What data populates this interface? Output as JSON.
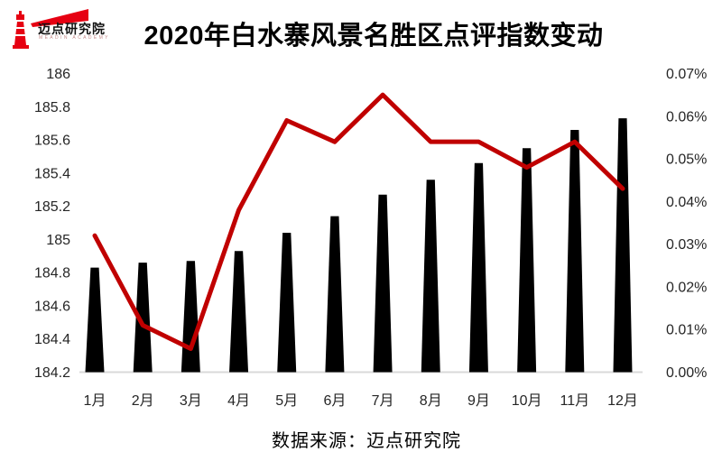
{
  "logo": {
    "name": "迈点研究院",
    "subtext": "MEADIN ACADEMY",
    "color": "#e60012"
  },
  "title": "2020年白水寨风景名胜区点评指数变动",
  "footer": "数据来源：迈点研究院",
  "colors": {
    "bar": "#000000",
    "line": "#c00000",
    "axis_text": "#262626",
    "baseline": "#d9d9d9",
    "background": "#ffffff"
  },
  "chart_data": {
    "type": "bar+line",
    "title": "2020年白水寨风景名胜区点评指数变动",
    "categories": [
      "1月",
      "2月",
      "3月",
      "4月",
      "5月",
      "6月",
      "7月",
      "8月",
      "9月",
      "10月",
      "11月",
      "12月"
    ],
    "series": [
      {
        "name": "left-axis-bars",
        "type": "bar",
        "axis": "left",
        "color": "#000000",
        "values": [
          184.83,
          184.86,
          184.87,
          184.93,
          185.04,
          185.14,
          185.27,
          185.36,
          185.46,
          185.55,
          185.66,
          185.73
        ]
      },
      {
        "name": "right-axis-line",
        "type": "line",
        "axis": "right",
        "color": "#c00000",
        "values_percent": [
          0.032,
          0.011,
          0.0055,
          0.038,
          0.059,
          0.054,
          0.065,
          0.054,
          0.054,
          0.048,
          0.054,
          0.043
        ]
      }
    ],
    "left_axis": {
      "min": 184.2,
      "max": 186,
      "step": 0.2,
      "tick_labels": [
        "186",
        "185.8",
        "185.6",
        "185.4",
        "185.2",
        "185",
        "184.8",
        "184.6",
        "184.4",
        "184.2"
      ],
      "tick_values": [
        186,
        185.8,
        185.6,
        185.4,
        185.2,
        185,
        184.8,
        184.6,
        184.4,
        184.2
      ]
    },
    "right_axis": {
      "min": 0,
      "max": 0.07,
      "step": 0.01,
      "tick_labels": [
        "0.07%",
        "0.06%",
        "0.05%",
        "0.04%",
        "0.03%",
        "0.02%",
        "0.01%",
        "0.00%"
      ],
      "tick_values": [
        0.07,
        0.06,
        0.05,
        0.04,
        0.03,
        0.02,
        0.01,
        0
      ]
    },
    "legend": "none",
    "gridlines": false
  }
}
